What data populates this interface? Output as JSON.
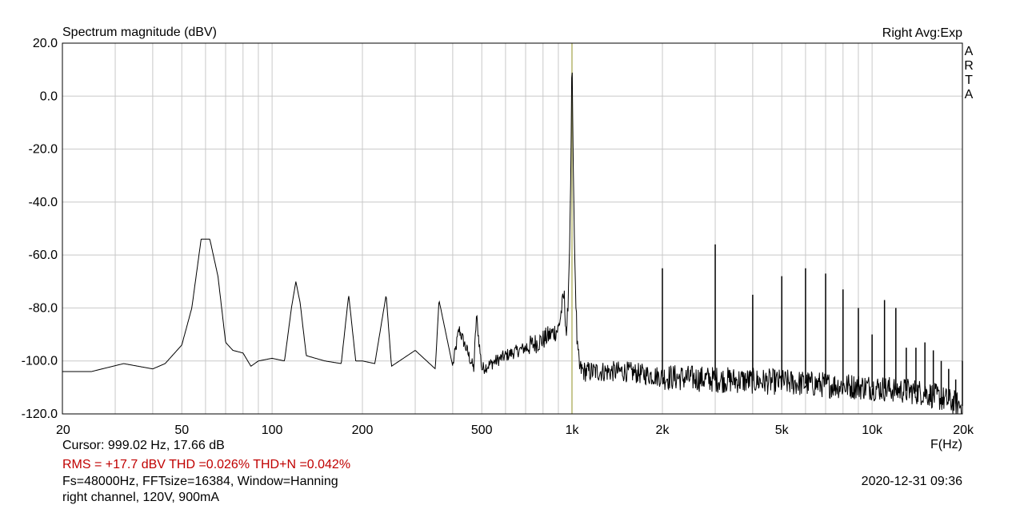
{
  "chart_data": {
    "type": "line",
    "title": "Spectrum magnitude (dBV)",
    "corner_label": "Right Avg:Exp",
    "brand_letters": [
      "A",
      "R",
      "T",
      "A"
    ],
    "xlabel": "F(Hz)",
    "x_scale": "log",
    "xlim": [
      20,
      20000
    ],
    "ylim": [
      -120,
      20
    ],
    "y_ticks": [
      20,
      0,
      -20,
      -40,
      -60,
      -80,
      -100,
      -120
    ],
    "y_tick_labels": [
      "20.0",
      "0.0",
      "-20.0",
      "-40.0",
      "-60.0",
      "-80.0",
      "-100.0",
      "-120.0"
    ],
    "x_ticks": [
      20,
      50,
      100,
      200,
      500,
      1000,
      2000,
      5000,
      10000,
      20000
    ],
    "x_tick_labels": [
      "20",
      "50",
      "100",
      "200",
      "500",
      "1k",
      "2k",
      "5k",
      "10k",
      "20k"
    ],
    "grid": true,
    "colors": {
      "trace": "#000000",
      "grid": "#c8c8c8",
      "cursor": "#b8b870",
      "info": "#c00000"
    },
    "cursor": {
      "frequency_hz": 999.02,
      "level_db": 17.66
    },
    "series": [
      {
        "x": [
          20,
          25,
          32,
          40,
          44,
          50,
          54,
          58,
          60,
          62,
          66,
          70,
          74,
          80,
          85,
          90,
          100,
          110,
          116,
          120,
          124,
          130,
          150,
          170,
          180,
          190,
          200,
          220,
          240,
          250,
          300,
          350,
          360,
          400,
          420,
          470,
          480,
          500,
          600,
          700,
          800,
          900,
          940,
          960,
          980,
          990,
          999,
          1010,
          1020,
          1040,
          1060,
          1100,
          1200,
          1500,
          2000,
          3000,
          5000,
          7000,
          10000,
          15000,
          20000
        ],
        "y": [
          -104,
          -104,
          -101,
          -103,
          -101,
          -94,
          -80,
          -54,
          -54,
          -54,
          -68,
          -93,
          -96,
          -97,
          -102,
          -100,
          -99,
          -100,
          -80,
          -70,
          -78,
          -98,
          -100,
          -101,
          -75,
          -100,
          -100,
          -101,
          -75,
          -102,
          -96,
          -103,
          -77,
          -102,
          -88,
          -103,
          -83,
          -103,
          -98,
          -95,
          -92,
          -88,
          -75,
          -92,
          -60,
          -30,
          17.66,
          -30,
          -60,
          -95,
          -103,
          -104,
          -104,
          -104,
          -106,
          -107,
          -108,
          -109,
          -110,
          -112,
          -117
        ]
      }
    ],
    "harmonic_peaks": {
      "x": [
        2000,
        3000,
        4000,
        5000,
        6000,
        7000,
        8000,
        9000,
        10000,
        11000,
        12000,
        13000,
        14000,
        15000,
        16000,
        17000,
        18000,
        19000,
        20000
      ],
      "y": [
        -65,
        -56,
        -75,
        -68,
        -65,
        -67,
        -73,
        -80,
        -90,
        -77,
        -80,
        -95,
        -95,
        -93,
        -96,
        -100,
        -103,
        -107,
        -100
      ]
    }
  },
  "info": {
    "cursor_line": "Cursor: 999.02 Hz, 17.66 dB",
    "summary_line": "RMS =  +17.7 dBV THD =0.026% THD+N =0.042%",
    "settings_line": "Fs=48000Hz, FFTsize=16384, Window=Hanning",
    "note_line": "right channel, 120V, 900mA",
    "timestamp": "2020-12-31  09:36"
  }
}
